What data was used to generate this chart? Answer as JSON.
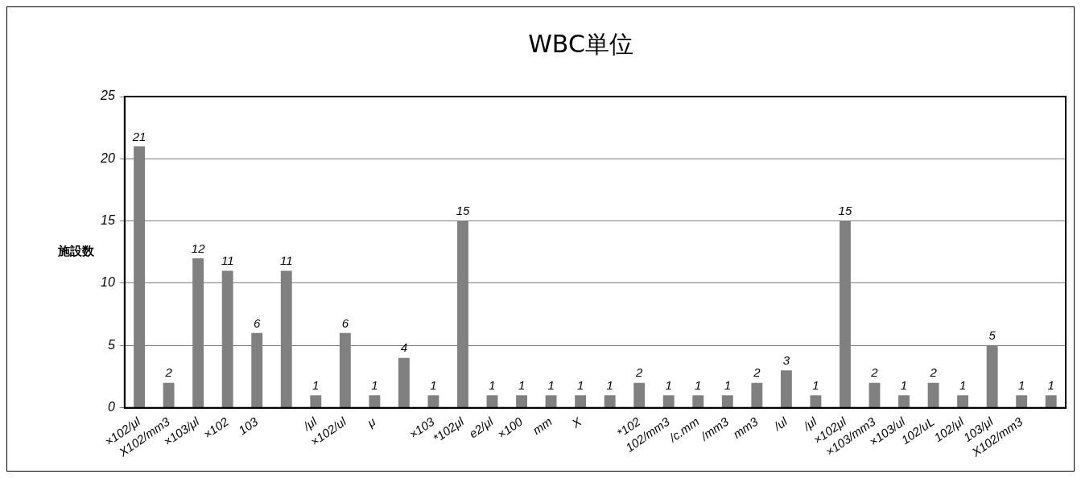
{
  "chart_data": {
    "type": "bar",
    "title": "WBC単位",
    "ylabel": "施設数",
    "categories": [
      "×102/μl",
      "X102/mm3",
      "×103/μl",
      "×102",
      "103",
      null,
      "/μl",
      "×102/ul",
      "μ",
      null,
      "×103",
      "*102μl",
      "e2/μl",
      "×100",
      "mm",
      "X",
      null,
      "*102",
      "102/mm3",
      "/c.mm",
      "/mm3",
      "mm3",
      "/ul",
      "/μl",
      "×102μl",
      "×103/mm3",
      "×103/ul",
      "102/uL",
      "102/μl",
      "103/μl",
      "X102/mm3",
      null
    ],
    "values": [
      21,
      2,
      12,
      11,
      6,
      11,
      1,
      6,
      1,
      4,
      1,
      15,
      1,
      1,
      1,
      1,
      1,
      2,
      1,
      1,
      1,
      2,
      3,
      1,
      15,
      2,
      1,
      2,
      1,
      5,
      1,
      1
    ],
    "color": "#808080",
    "ylim": [
      0,
      25
    ],
    "yticks": [
      0,
      5,
      10,
      15,
      20,
      25
    ],
    "grid": "y",
    "data_labels": true,
    "legend": false
  }
}
